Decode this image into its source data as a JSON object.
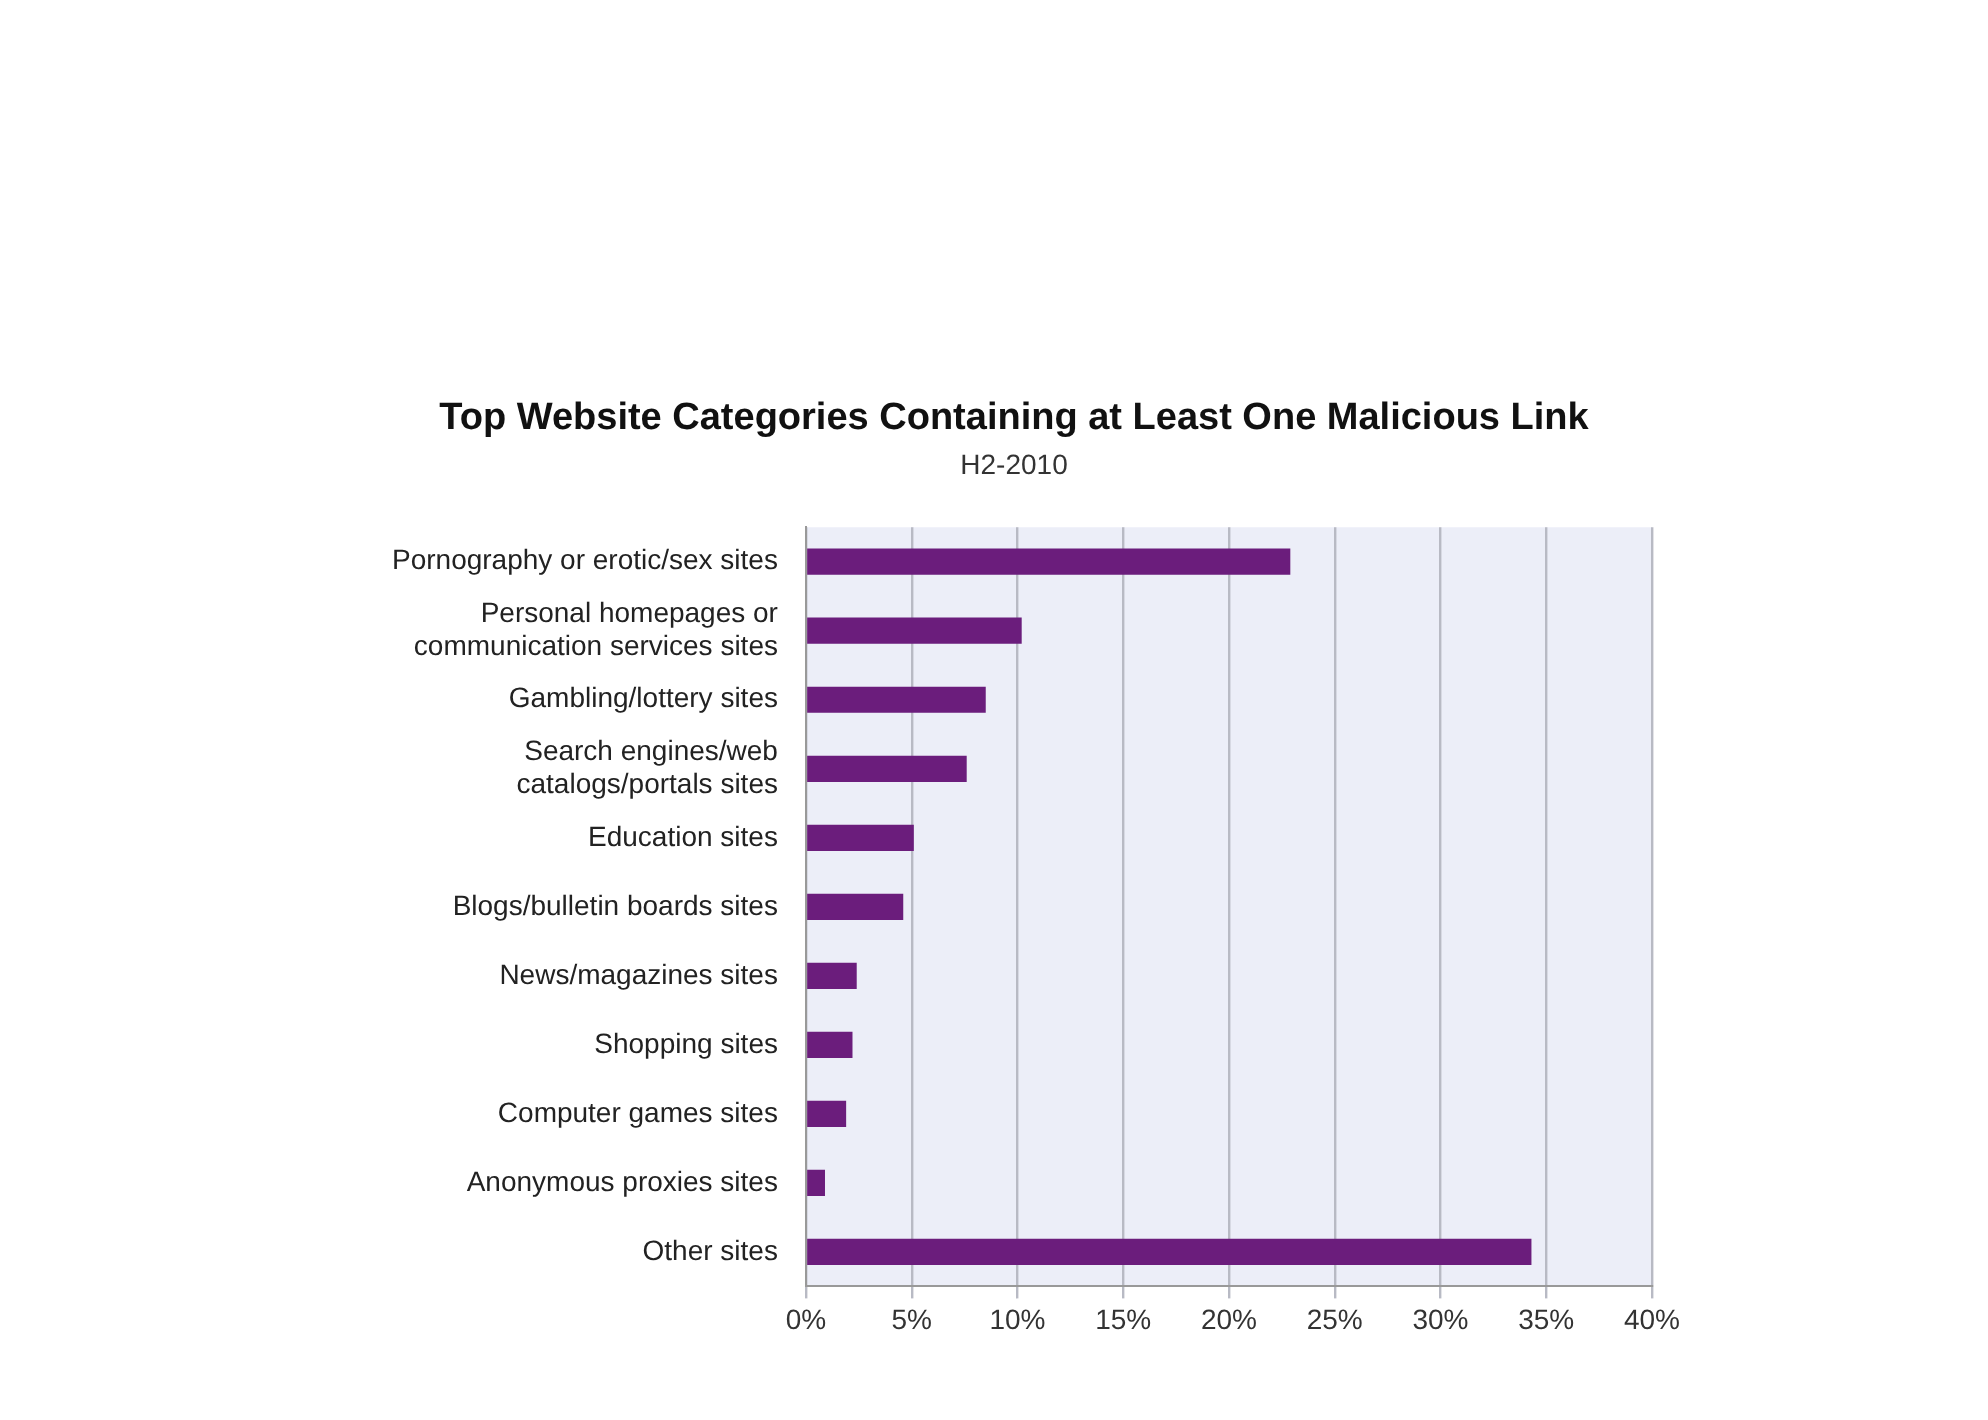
{
  "chart_data": {
    "type": "bar",
    "orientation": "horizontal",
    "title": "Top Website Categories Containing at Least One Malicious Link",
    "subtitle": "H2-2010",
    "categories": [
      "Pornography or erotic/sex sites",
      "Personal homepages or communication services sites",
      "Gambling/lottery sites",
      "Search engines/web catalogs/portals sites",
      "Education sites",
      "Blogs/bulletin boards sites",
      "News/magazines sites",
      "Shopping sites",
      "Computer games sites",
      "Anonymous proxies sites",
      "Other sites"
    ],
    "values": [
      22.9,
      10.2,
      8.5,
      7.6,
      5.1,
      4.6,
      2.4,
      2.2,
      1.9,
      0.9,
      34.3
    ],
    "color": "#6b1d7c",
    "xlim": [
      0,
      40
    ],
    "xticks": [
      {
        "value": 0,
        "label": "0%"
      },
      {
        "value": 5,
        "label": "5%"
      },
      {
        "value": 10,
        "label": "10%"
      },
      {
        "value": 15,
        "label": "15%"
      },
      {
        "value": 20,
        "label": "20%"
      },
      {
        "value": 25,
        "label": "25%"
      },
      {
        "value": 30,
        "label": "30%"
      },
      {
        "value": 35,
        "label": "35%"
      },
      {
        "value": 40,
        "label": "40%"
      }
    ],
    "grid": "x",
    "legend": false
  }
}
